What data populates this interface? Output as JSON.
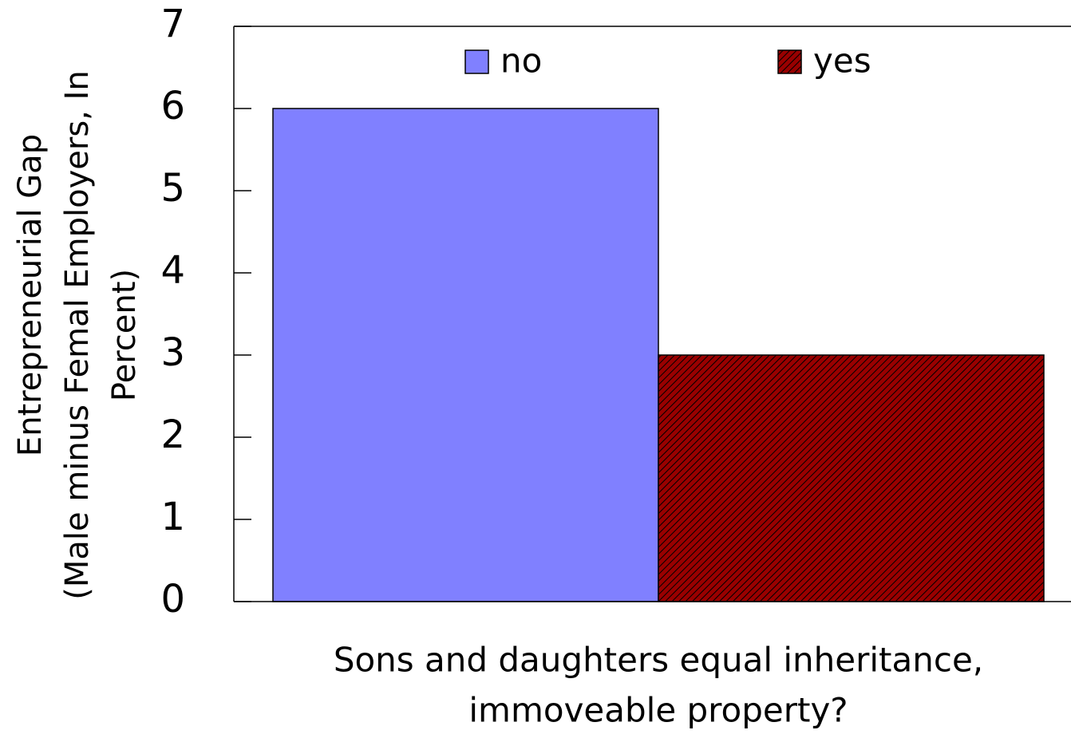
{
  "chart_data": {
    "type": "bar",
    "y_label": [
      "Entrepreneurial Gap",
      "(Male minus Femal Employers, In",
      "Percent)"
    ],
    "x_label": [
      "Sons and daughters equal inheritance,",
      "immoveable property?"
    ],
    "categories": [
      null
    ],
    "series": [
      {
        "name": "no",
        "color": "#8080ff",
        "values": [
          6
        ]
      },
      {
        "name": "yes",
        "color": "#990000",
        "pattern": "hatch",
        "values": [
          3
        ]
      }
    ],
    "ylim": [
      0,
      7
    ],
    "yticks": [
      0,
      1,
      2,
      3,
      4,
      5,
      6,
      7
    ],
    "grid": false,
    "legend": "top"
  }
}
